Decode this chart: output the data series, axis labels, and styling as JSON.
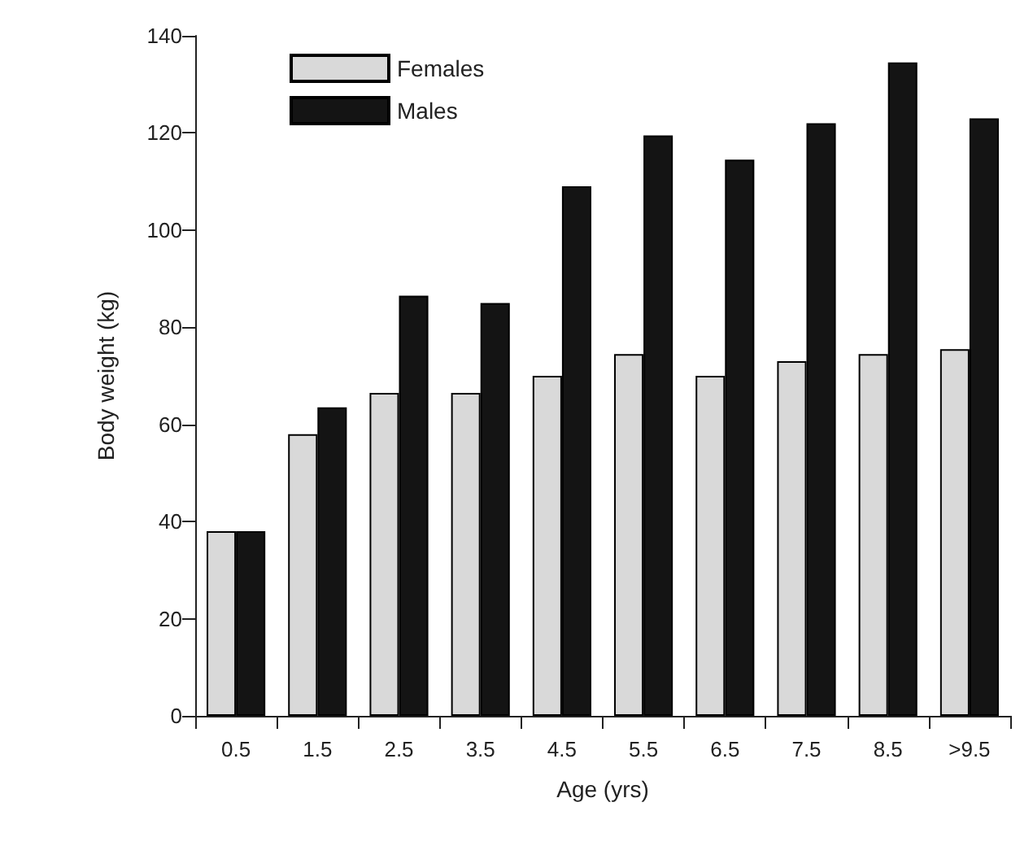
{
  "chart_data": {
    "type": "bar",
    "xlabel": "Age (yrs)",
    "ylabel": "Body weight (kg)",
    "categories": [
      "0.5",
      "1.5",
      "2.5",
      "3.5",
      "4.5",
      "5.5",
      "6.5",
      "7.5",
      "8.5",
      ">9.5"
    ],
    "series": [
      {
        "name": "Females",
        "color": "#d9d9d9",
        "values": [
          38,
          58,
          66.5,
          66.5,
          70,
          74.5,
          70,
          73,
          74.5,
          75.5
        ]
      },
      {
        "name": "Males",
        "color": "#141414",
        "values": [
          38,
          63.5,
          86.5,
          85,
          109,
          119.5,
          114.5,
          122,
          134.5,
          123
        ]
      }
    ],
    "ylim": [
      0,
      140
    ],
    "yticks": [
      0,
      20,
      40,
      60,
      80,
      100,
      120,
      140
    ],
    "grid": false,
    "legend": "top left"
  }
}
